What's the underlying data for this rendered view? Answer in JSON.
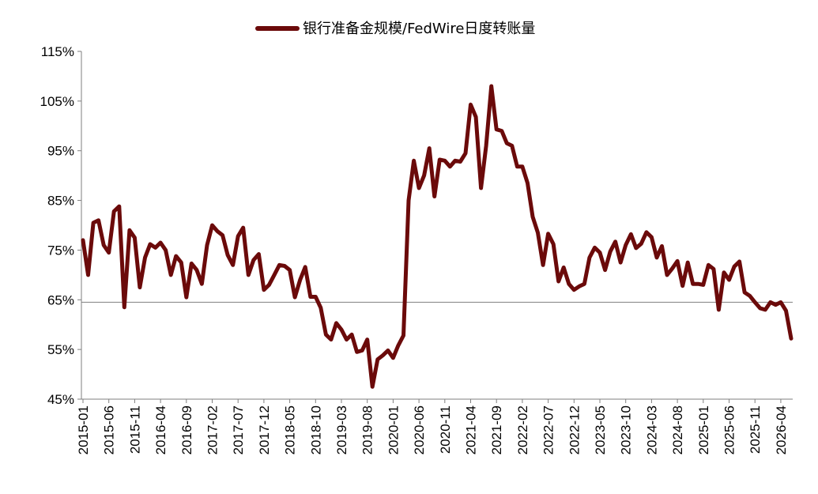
{
  "chart_data": {
    "type": "line",
    "title": "",
    "xlabel": "",
    "ylabel": "",
    "ylim": [
      0.45,
      1.15
    ],
    "y_ticks": [
      "115%",
      "105%",
      "95%",
      "85%",
      "75%",
      "65%",
      "55%",
      "45%"
    ],
    "x_tick_labels": [
      "2015-01",
      "2015-06",
      "2015-11",
      "2016-04",
      "2016-09",
      "2017-02",
      "2017-07",
      "2017-12",
      "2018-05",
      "2018-10",
      "2019-03",
      "2019-08",
      "2020-01",
      "2020-06",
      "2020-11",
      "2021-04",
      "2021-09",
      "2022-02",
      "2022-07",
      "2022-12",
      "2023-05",
      "2023-10",
      "2024-03",
      "2024-08",
      "2025-01",
      "2025-06",
      "2025-11",
      "2026-04"
    ],
    "x_start": "2015-01",
    "legend": {
      "position": "top-center",
      "entries": [
        "银行准备金规模/FedWire日度转账量"
      ]
    },
    "grid": false,
    "reference_line": 0.645,
    "colors": {
      "series": "#6b0a0a",
      "axis": "#7f7f7f"
    },
    "series": [
      {
        "name": "银行准备金规模/FedWire日度转账量",
        "values": [
          0.77,
          0.7,
          0.805,
          0.81,
          0.76,
          0.745,
          0.828,
          0.838,
          0.635,
          0.79,
          0.775,
          0.675,
          0.735,
          0.762,
          0.755,
          0.765,
          0.75,
          0.7,
          0.738,
          0.725,
          0.655,
          0.723,
          0.71,
          0.682,
          0.76,
          0.8,
          0.788,
          0.78,
          0.74,
          0.72,
          0.778,
          0.795,
          0.7,
          0.73,
          0.742,
          0.67,
          0.68,
          0.7,
          0.72,
          0.718,
          0.71,
          0.655,
          0.69,
          0.716,
          0.656,
          0.656,
          0.634,
          0.58,
          0.57,
          0.603,
          0.59,
          0.57,
          0.58,
          0.545,
          0.548,
          0.57,
          0.475,
          0.53,
          0.538,
          0.548,
          0.533,
          0.558,
          0.578,
          0.85,
          0.93,
          0.875,
          0.9,
          0.955,
          0.858,
          0.932,
          0.93,
          0.918,
          0.93,
          0.928,
          0.945,
          1.043,
          1.018,
          0.875,
          0.96,
          1.08,
          0.993,
          0.99,
          0.965,
          0.96,
          0.918,
          0.918,
          0.885,
          0.817,
          0.785,
          0.72,
          0.783,
          0.762,
          0.687,
          0.715,
          0.682,
          0.67,
          0.677,
          0.682,
          0.735,
          0.755,
          0.745,
          0.71,
          0.747,
          0.767,
          0.725,
          0.76,
          0.782,
          0.754,
          0.763,
          0.786,
          0.776,
          0.735,
          0.758,
          0.7,
          0.713,
          0.728,
          0.678,
          0.725,
          0.682,
          0.682,
          0.68,
          0.72,
          0.712,
          0.63,
          0.705,
          0.69,
          0.717,
          0.727,
          0.665,
          0.658,
          0.645,
          0.633,
          0.63,
          0.645,
          0.64,
          0.645,
          0.628,
          0.572
        ]
      }
    ]
  }
}
